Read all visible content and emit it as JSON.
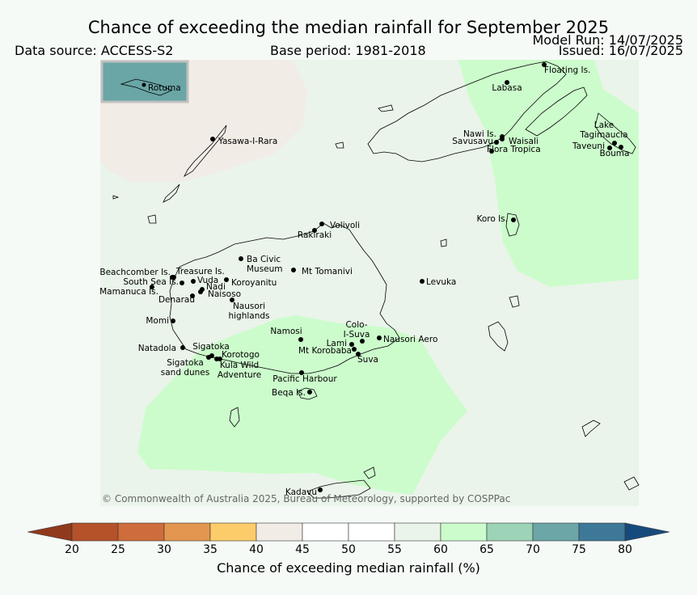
{
  "title": "Chance of exceeding the median rainfall for September 2025",
  "data_source": "Data source: ACCESS-S2",
  "base_period": "Base period: 1981-2018",
  "model_run": "Model Run: 14/07/2025",
  "issued": "Issued: 16/07/2025",
  "inset_label": "Rotuma",
  "copyright": "© Commonwealth of Australia 2025, Bureau of Meteorology, supported by COSPPac",
  "colorbar": {
    "label": "Chance of exceeding median rainfall (%)",
    "ticks": [
      "20",
      "25",
      "30",
      "35",
      "40",
      "45",
      "50",
      "55",
      "60",
      "65",
      "70",
      "75",
      "80"
    ],
    "colors": [
      "#b5522a",
      "#cf6c3b",
      "#e39650",
      "#fdcc6a",
      "#f2ece6",
      "#ffffff",
      "#ffffff",
      "#eaf4ea",
      "#ccfccc",
      "#9dd3b6",
      "#6ca6a7",
      "#3d7898"
    ],
    "under_color": "#91391d",
    "over_color": "#174a7c"
  },
  "places": [
    {
      "name": "Floating Is."
    },
    {
      "name": "Labasa"
    },
    {
      "name": "Yasawa-I-Rara"
    },
    {
      "name": "Nawi Is."
    },
    {
      "name": "Savusavu"
    },
    {
      "name": "Waisali"
    },
    {
      "name": "Flora Tropica"
    },
    {
      "name": "Lake Tagimaucia"
    },
    {
      "name": "Taveuni"
    },
    {
      "name": "Bouma"
    },
    {
      "name": "Koro Is."
    },
    {
      "name": "Volivoli"
    },
    {
      "name": "Rakiraki"
    },
    {
      "name": "Ba Civic Museum"
    },
    {
      "name": "Mt Tomanivi"
    },
    {
      "name": "Levuka"
    },
    {
      "name": "Beachcomber Is."
    },
    {
      "name": "Treasure Is."
    },
    {
      "name": "South Sea Is."
    },
    {
      "name": "Vuda"
    },
    {
      "name": "Koroyanitu"
    },
    {
      "name": "Nadi"
    },
    {
      "name": "Mamanuca Is."
    },
    {
      "name": "Naisoso"
    },
    {
      "name": "Denarau"
    },
    {
      "name": "Nausori highlands"
    },
    {
      "name": "Momi"
    },
    {
      "name": "Colo-I-Suva"
    },
    {
      "name": "Namosi"
    },
    {
      "name": "Lami"
    },
    {
      "name": "Nausori Aero"
    },
    {
      "name": "Natadola"
    },
    {
      "name": "Sigatoka"
    },
    {
      "name": "Mt Korobaba"
    },
    {
      "name": "Korotogo"
    },
    {
      "name": "Suva"
    },
    {
      "name": "Sigatoka sand dunes"
    },
    {
      "name": "Kula Wild Adventure"
    },
    {
      "name": "Pacific Harbour"
    },
    {
      "name": "Beqa Is."
    },
    {
      "name": "Kadavu"
    }
  ]
}
